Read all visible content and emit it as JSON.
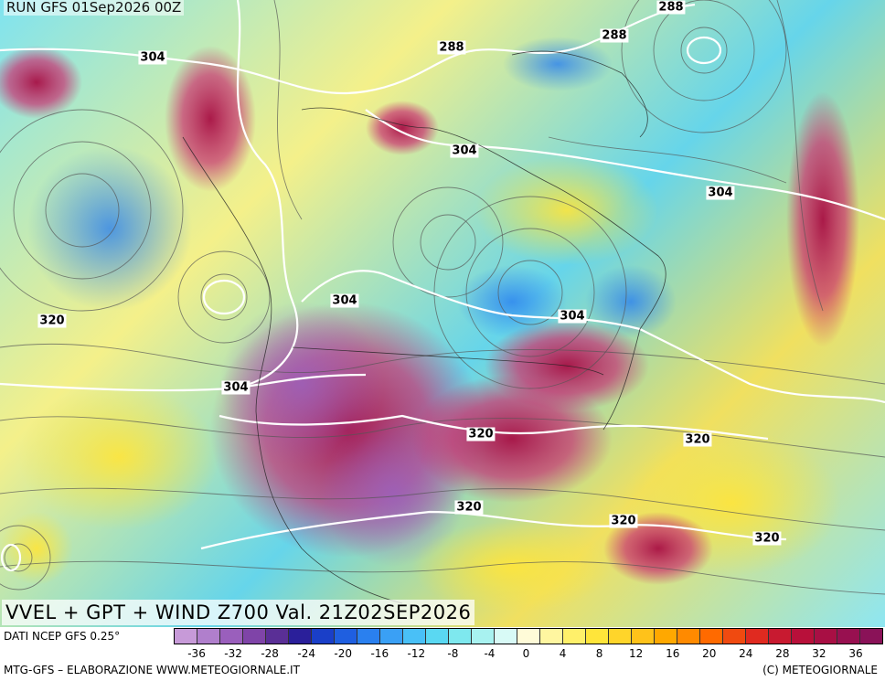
{
  "run_title": "RUN GFS 01Sep2026 00Z",
  "map_title": "VVEL + GPT + WIND Z700 Val. 21Z02SEP2026",
  "source_label": "DATI NCEP GFS 0.25°",
  "credit_left": "MTG-GFS – ELABORAZIONE WWW.METEOGIORNALE.IT",
  "credit_right": "(C) METEOGIORNALE",
  "contour_labels": [
    "304",
    "288",
    "288",
    "288",
    "304",
    "304",
    "320",
    "304",
    "304",
    "304",
    "320",
    "320",
    "320",
    "320",
    "320"
  ],
  "colorbar": {
    "ticks": [
      "-36",
      "-32",
      "-28",
      "-24",
      "-20",
      "-16",
      "-12",
      "-8",
      "-4",
      "0",
      "4",
      "8",
      "12",
      "16",
      "20",
      "24",
      "28",
      "32",
      "36"
    ],
    "colors": [
      "#c79ad8",
      "#b07fcc",
      "#9a5fbc",
      "#7f44a8",
      "#5a2f96",
      "#2a1f9a",
      "#1a3fc8",
      "#1f5fe0",
      "#2a80ef",
      "#3aa0f5",
      "#49c0f7",
      "#5ad8f2",
      "#7ee8ee",
      "#a8f2f0",
      "#d8faf6",
      "#fffbd8",
      "#fff6a0",
      "#fff06a",
      "#ffe53a",
      "#ffd52a",
      "#ffc21a",
      "#ffa800",
      "#ff8a00",
      "#ff6a00",
      "#f04a10",
      "#e02a20",
      "#c81a30",
      "#b8103a",
      "#a80f44",
      "#981050",
      "#8a1258"
    ]
  }
}
